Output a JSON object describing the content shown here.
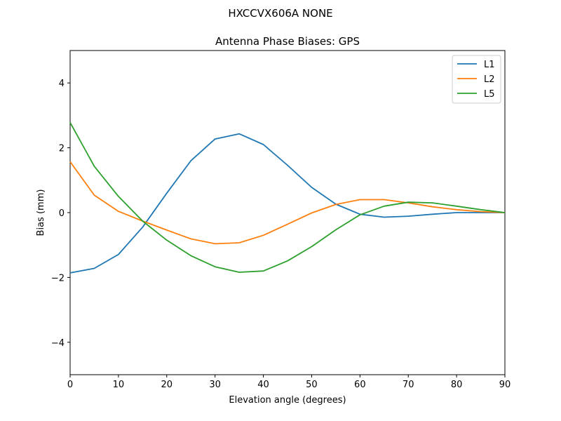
{
  "suptitle": "HXCCVX606A       NONE",
  "chart_data": {
    "type": "line",
    "title": "Antenna Phase Biases: GPS",
    "xlabel": "Elevation angle (degrees)",
    "ylabel": "Bias (mm)",
    "xlim": [
      0,
      90
    ],
    "ylim": [
      -5,
      5
    ],
    "xticks": [
      0,
      10,
      20,
      30,
      40,
      50,
      60,
      70,
      80,
      90
    ],
    "yticks": [
      -4,
      -2,
      0,
      2,
      4
    ],
    "grid": false,
    "legend_position": "top-right",
    "x": [
      0,
      5,
      10,
      15,
      20,
      25,
      30,
      35,
      40,
      45,
      50,
      55,
      60,
      65,
      70,
      75,
      80,
      85,
      90
    ],
    "series": [
      {
        "name": "L1",
        "color": "#1f77b4",
        "values": [
          -1.86,
          -1.72,
          -1.29,
          -0.45,
          0.6,
          1.6,
          2.27,
          2.43,
          2.1,
          1.46,
          0.78,
          0.26,
          -0.05,
          -0.14,
          -0.11,
          -0.05,
          0.0,
          0.0,
          0.0
        ]
      },
      {
        "name": "L2",
        "color": "#ff7f0e",
        "values": [
          1.57,
          0.54,
          0.04,
          -0.26,
          -0.54,
          -0.81,
          -0.96,
          -0.93,
          -0.7,
          -0.36,
          -0.01,
          0.25,
          0.4,
          0.4,
          0.3,
          0.18,
          0.09,
          0.03,
          0.0
        ]
      },
      {
        "name": "L5",
        "color": "#2ca02c",
        "values": [
          2.78,
          1.43,
          0.5,
          -0.26,
          -0.85,
          -1.33,
          -1.67,
          -1.84,
          -1.8,
          -1.49,
          -1.05,
          -0.53,
          -0.07,
          0.2,
          0.32,
          0.3,
          0.2,
          0.09,
          0.0
        ]
      }
    ]
  }
}
